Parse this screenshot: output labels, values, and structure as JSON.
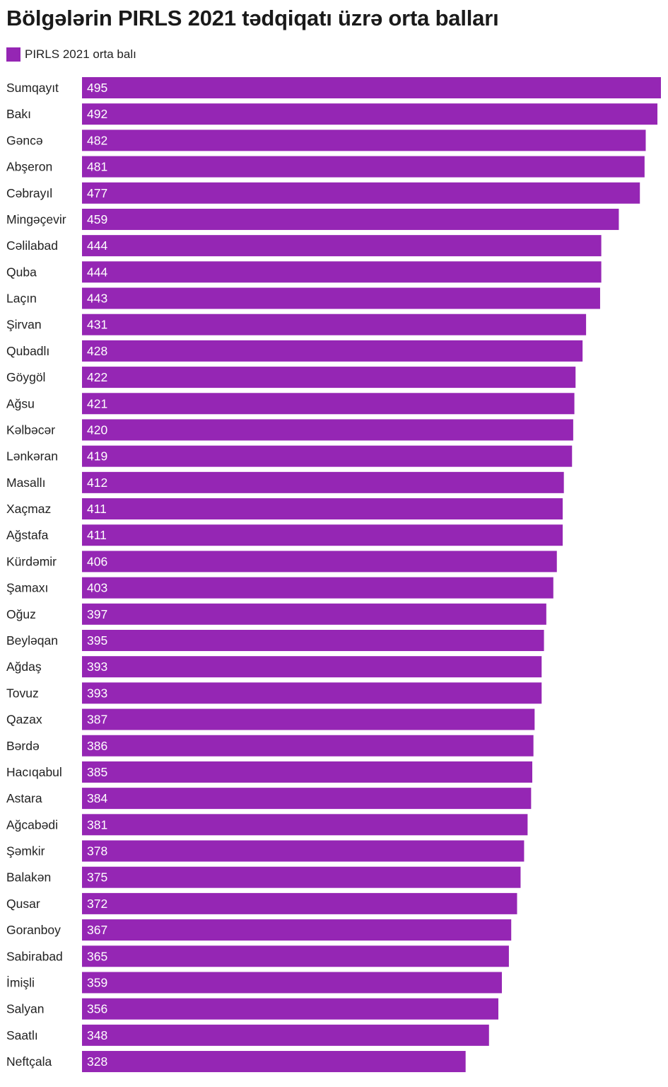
{
  "chart_data": {
    "type": "bar",
    "orientation": "horizontal",
    "title": "Bölgələrin PIRLS 2021 tədqiqatı üzrə orta balları",
    "legend": {
      "placement": "top-left"
    },
    "series": [
      {
        "name": "PIRLS 2021 orta balı",
        "color": "#9526b4",
        "values": [
          495,
          492,
          482,
          481,
          477,
          459,
          444,
          444,
          443,
          431,
          428,
          422,
          421,
          420,
          419,
          412,
          411,
          411,
          406,
          403,
          397,
          395,
          393,
          393,
          387,
          386,
          385,
          384,
          381,
          378,
          375,
          372,
          367,
          365,
          359,
          356,
          348,
          328
        ]
      }
    ],
    "categories": [
      "Sumqayıt",
      "Bakı",
      "Gəncə",
      "Abşeron",
      "Cəbrayıl",
      "Mingəçevir",
      "Cəlilabad",
      "Quba",
      "Laçın",
      "Şirvan",
      "Qubadlı",
      "Göygöl",
      "Ağsu",
      "Kəlbəcər",
      "Lənkəran",
      "Masallı",
      "Xaçmaz",
      "Ağstafa",
      "Kürdəmir",
      "Şamaxı",
      "Oğuz",
      "Beyləqan",
      "Ağdaş",
      "Tovuz",
      "Qazax",
      "Bərdə",
      "Hacıqabul",
      "Astara",
      "Ağcabədi",
      "Şəmkir",
      "Balakən",
      "Qusar",
      "Goranboy",
      "Sabirabad",
      "İmişli",
      "Salyan",
      "Saatlı",
      "Neftçala"
    ],
    "xlim": [
      0,
      495
    ],
    "grid": false,
    "data_labels": true
  }
}
